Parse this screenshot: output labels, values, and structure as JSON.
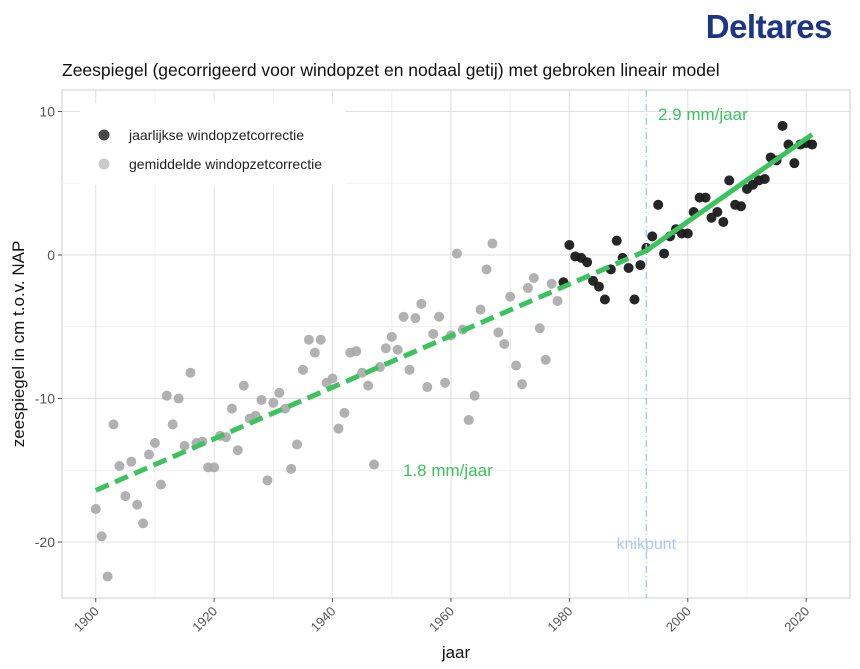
{
  "logo": "Deltares",
  "chart_data": {
    "type": "scatter",
    "title": "Zeespiegel (gecorrigeerd voor windopzet en nodaal getij) met gebroken lineair model",
    "xlabel": "jaar",
    "ylabel": "zeespiegel in cm t.o.v. NAP",
    "xlim": [
      1894.3,
      2027.4
    ],
    "ylim": [
      -23.9,
      11.5
    ],
    "xticks": [
      1900,
      1920,
      1940,
      1960,
      1980,
      2000,
      2020
    ],
    "yticks": [
      10,
      0,
      -10,
      -20
    ],
    "grid": true,
    "legend_position": "top-left",
    "series": [
      {
        "name": "jaarlijkse windopzetcorrectie",
        "color": "#1a1a1a",
        "x_start": 1979,
        "values": [
          -1.9,
          0.7,
          -0.1,
          -0.2,
          -0.5,
          -1.8,
          -2.2,
          -3.1,
          -1.0,
          1.0,
          -0.2,
          -0.9,
          -3.1,
          -0.7,
          0.5,
          1.3,
          3.5,
          0.1,
          1.3,
          1.8,
          1.5,
          1.5,
          3.0,
          4.0,
          4.0,
          2.6,
          3.0,
          2.3,
          5.2,
          3.5,
          3.4,
          4.6,
          4.9,
          5.2,
          5.3,
          6.8,
          6.6,
          9.0,
          7.7,
          6.4,
          7.7,
          7.8,
          7.7
        ]
      },
      {
        "name": "gemiddelde windopzetcorrectie",
        "color": "#a9a9a9",
        "x_start": 1900,
        "values": [
          -17.7,
          -19.6,
          -22.4,
          -11.8,
          -14.7,
          -16.8,
          -14.4,
          -17.4,
          -18.7,
          -13.9,
          -13.1,
          -16.0,
          -9.8,
          -11.8,
          -10.0,
          -13.3,
          -8.2,
          -13.1,
          -13.0,
          -14.8,
          -14.8,
          -12.6,
          -12.7,
          -10.7,
          -13.6,
          -9.1,
          -11.4,
          -11.2,
          -10.1,
          -15.7,
          -10.3,
          -9.6,
          -10.7,
          -14.9,
          -13.2,
          -8.0,
          -5.9,
          -6.8,
          -5.9,
          -8.9,
          -8.6,
          -12.1,
          -11.0,
          -6.8,
          -6.7,
          -8.2,
          -9.1,
          -14.6,
          -7.8,
          -6.5,
          -5.7,
          -6.6,
          -4.3,
          -8.0,
          -4.4,
          -3.4,
          -9.2,
          -5.5,
          -4.3,
          -8.9,
          -5.6,
          0.1,
          -5.2,
          -11.5,
          -9.8,
          -3.8,
          -1.0,
          0.8,
          -5.4,
          -6.2,
          -2.9,
          -7.7,
          -9.0,
          -2.3,
          -1.6,
          -5.1,
          -7.3,
          -2.0,
          -3.2
        ]
      }
    ],
    "trend_lines": [
      {
        "label": "1.8 mm/jaar",
        "x": [
          1900,
          1993
        ],
        "y": [
          -16.4,
          0.3
        ],
        "style": "dashed",
        "color": "#3cc35e"
      },
      {
        "label": "2.9 mm/jaar",
        "x": [
          1993,
          2021
        ],
        "y": [
          0.3,
          8.4
        ],
        "style": "solid",
        "color": "#3cc35e"
      }
    ],
    "breakpoint": {
      "label": "knikpunt",
      "x": 1993,
      "color": "#a9cbee"
    }
  }
}
